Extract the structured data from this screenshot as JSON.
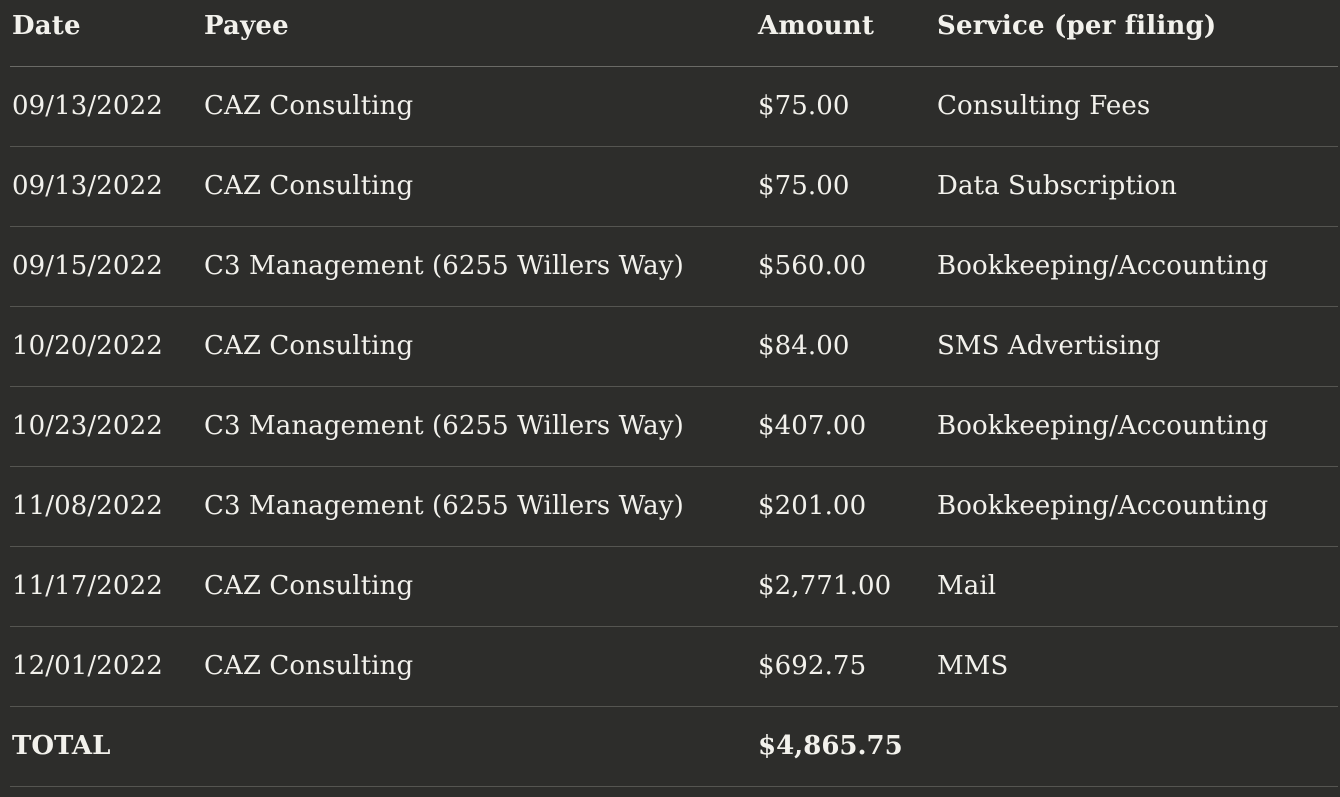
{
  "table": {
    "headers": {
      "date": "Date",
      "payee": "Payee",
      "amount": "Amount",
      "service": "Service (per filing)"
    },
    "rows": [
      {
        "date": "09/13/2022",
        "payee": "CAZ Consulting",
        "amount": "$75.00",
        "service": "Consulting Fees"
      },
      {
        "date": "09/13/2022",
        "payee": "CAZ Consulting",
        "amount": "$75.00",
        "service": "Data Subscription"
      },
      {
        "date": "09/15/2022",
        "payee": "C3 Management (6255 Willers Way)",
        "amount": "$560.00",
        "service": "Bookkeeping/Accounting"
      },
      {
        "date": "10/20/2022",
        "payee": "CAZ Consulting",
        "amount": "$84.00",
        "service": "SMS Advertising"
      },
      {
        "date": "10/23/2022",
        "payee": "C3 Management (6255 Willers Way)",
        "amount": "$407.00",
        "service": "Bookkeeping/Accounting"
      },
      {
        "date": "11/08/2022",
        "payee": "C3 Management (6255 Willers Way)",
        "amount": "$201.00",
        "service": "Bookkeeping/Accounting"
      },
      {
        "date": "11/17/2022",
        "payee": "CAZ Consulting",
        "amount": "$2,771.00",
        "service": "Mail"
      },
      {
        "date": "12/01/2022",
        "payee": "CAZ Consulting",
        "amount": "$692.75",
        "service": "MMS"
      }
    ],
    "total": {
      "label": "TOTAL",
      "amount": "$4,865.75"
    }
  },
  "colors": {
    "background": "#2d2d2b",
    "text": "#f2f1ec",
    "rule": "#555551"
  }
}
